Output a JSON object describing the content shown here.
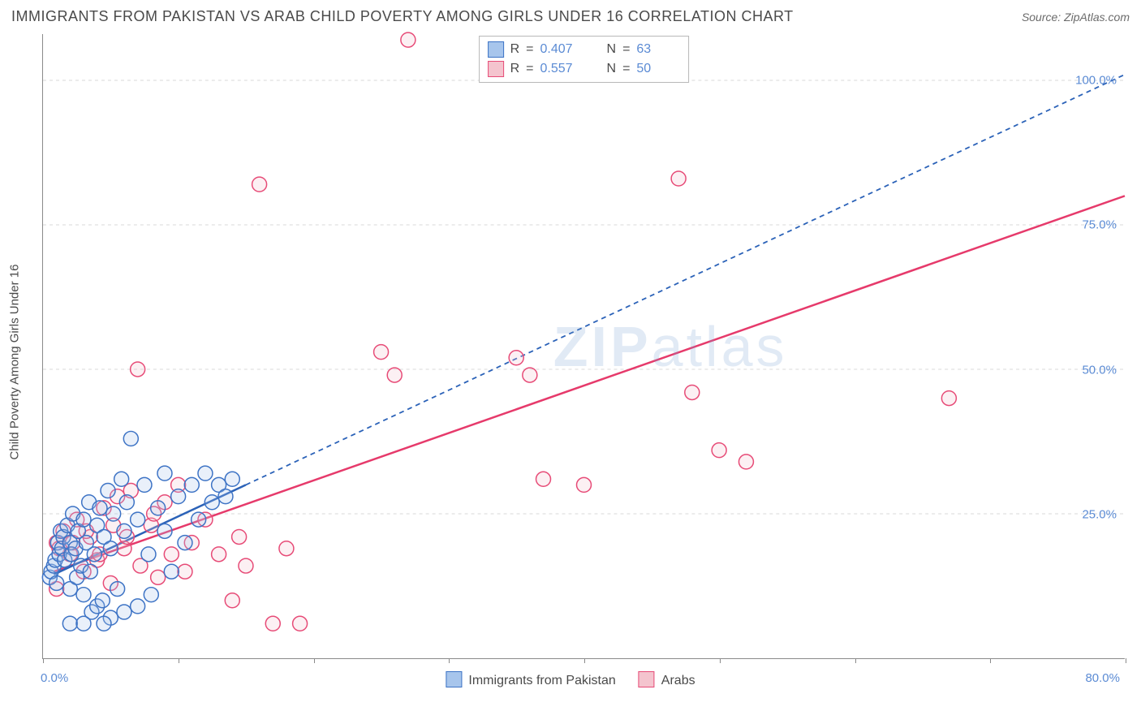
{
  "title": "IMMIGRANTS FROM PAKISTAN VS ARAB CHILD POVERTY AMONG GIRLS UNDER 16 CORRELATION CHART",
  "source_label": "Source: ZipAtlas.com",
  "watermark_a": "ZIP",
  "watermark_b": "atlas",
  "y_axis_label": "Child Poverty Among Girls Under 16",
  "chart": {
    "type": "scatter",
    "background_color": "#ffffff",
    "grid_color": "#d9d9d9",
    "axis_color": "#8a8a8a",
    "xlim": [
      0,
      80
    ],
    "ylim": [
      0,
      108
    ],
    "x_ticks": [
      0,
      10,
      20,
      30,
      40,
      50,
      60,
      70,
      80
    ],
    "x_tick_labels": {
      "0": "0.0%",
      "80": "80.0%"
    },
    "y_gridlines": [
      25,
      50,
      75,
      100
    ],
    "y_tick_labels": {
      "25": "25.0%",
      "50": "50.0%",
      "75": "75.0%",
      "100": "100.0%"
    },
    "marker_radius": 9,
    "marker_stroke_width": 1.5,
    "marker_fill_opacity": 0.25,
    "line_width_solid": 2.5,
    "line_width_dash": 1.8,
    "dash_pattern": "6,5",
    "tick_label_color": "#5b8bd4",
    "axis_text_color": "#4a4a4a",
    "title_fontsize": 18,
    "label_fontsize": 15
  },
  "series": {
    "pakistan": {
      "label": "Immigrants from Pakistan",
      "fill": "#a7c5ec",
      "stroke": "#3d73c5",
      "line_stroke": "#2b62b8",
      "r_value": "0.407",
      "n_value": "63",
      "trend_solid": {
        "x1": 0.8,
        "y1": 14.5,
        "x2": 15,
        "y2": 30
      },
      "trend_dash": {
        "x1": 15,
        "y1": 30,
        "x2": 80,
        "y2": 101
      },
      "points": [
        [
          0.5,
          14
        ],
        [
          0.6,
          15
        ],
        [
          0.8,
          16
        ],
        [
          0.9,
          17
        ],
        [
          1.0,
          13
        ],
        [
          1.1,
          20
        ],
        [
          1.2,
          18
        ],
        [
          1.3,
          22
        ],
        [
          1.4,
          19
        ],
        [
          1.5,
          21
        ],
        [
          1.6,
          17
        ],
        [
          1.8,
          23
        ],
        [
          2.0,
          20
        ],
        [
          2.0,
          12
        ],
        [
          2.1,
          18
        ],
        [
          2.2,
          25
        ],
        [
          2.4,
          19
        ],
        [
          2.5,
          14
        ],
        [
          2.6,
          22
        ],
        [
          2.8,
          16
        ],
        [
          3.0,
          24
        ],
        [
          3.0,
          11
        ],
        [
          3.2,
          20
        ],
        [
          3.4,
          27
        ],
        [
          3.5,
          15
        ],
        [
          3.6,
          8
        ],
        [
          3.8,
          18
        ],
        [
          4.0,
          23
        ],
        [
          4.0,
          9
        ],
        [
          4.2,
          26
        ],
        [
          4.4,
          10
        ],
        [
          4.5,
          21
        ],
        [
          4.8,
          29
        ],
        [
          5.0,
          7
        ],
        [
          5.0,
          19
        ],
        [
          5.2,
          25
        ],
        [
          5.5,
          12
        ],
        [
          5.8,
          31
        ],
        [
          6.0,
          8
        ],
        [
          6.0,
          22
        ],
        [
          6.2,
          27
        ],
        [
          6.5,
          38
        ],
        [
          7.0,
          9
        ],
        [
          7.0,
          24
        ],
        [
          7.5,
          30
        ],
        [
          7.8,
          18
        ],
        [
          8.0,
          11
        ],
        [
          8.5,
          26
        ],
        [
          9.0,
          22
        ],
        [
          9.0,
          32
        ],
        [
          9.5,
          15
        ],
        [
          10.0,
          28
        ],
        [
          10.5,
          20
        ],
        [
          11.0,
          30
        ],
        [
          11.5,
          24
        ],
        [
          12.0,
          32
        ],
        [
          12.5,
          27
        ],
        [
          13.0,
          30
        ],
        [
          13.5,
          28
        ],
        [
          14.0,
          31
        ],
        [
          2.0,
          6
        ],
        [
          3.0,
          6
        ],
        [
          4.5,
          6
        ]
      ]
    },
    "arabs": {
      "label": "Arabs",
      "fill": "#f4c4ce",
      "stroke": "#e74b77",
      "line_stroke": "#e63a6b",
      "r_value": "0.557",
      "n_value": "50",
      "trend_solid": {
        "x1": 0.8,
        "y1": 15,
        "x2": 80,
        "y2": 80
      },
      "points": [
        [
          1.0,
          20
        ],
        [
          1.5,
          22
        ],
        [
          2.0,
          18
        ],
        [
          2.5,
          24
        ],
        [
          3.0,
          15
        ],
        [
          3.5,
          21
        ],
        [
          4.0,
          17
        ],
        [
          4.5,
          26
        ],
        [
          5.0,
          13
        ],
        [
          5.5,
          28
        ],
        [
          6.0,
          19
        ],
        [
          6.5,
          29
        ],
        [
          7.0,
          50
        ],
        [
          7.2,
          16
        ],
        [
          8.0,
          23
        ],
        [
          8.5,
          14
        ],
        [
          9.0,
          27
        ],
        [
          9.5,
          18
        ],
        [
          10.0,
          30
        ],
        [
          10.5,
          15
        ],
        [
          11.0,
          20
        ],
        [
          12.0,
          24
        ],
        [
          13.0,
          18
        ],
        [
          14.0,
          10
        ],
        [
          14.5,
          21
        ],
        [
          15.0,
          16
        ],
        [
          16.0,
          82
        ],
        [
          17.0,
          6
        ],
        [
          18.0,
          19
        ],
        [
          19.0,
          6
        ],
        [
          25.0,
          53
        ],
        [
          26.0,
          49
        ],
        [
          27.0,
          107
        ],
        [
          35.0,
          52
        ],
        [
          36.0,
          49
        ],
        [
          37.0,
          31
        ],
        [
          40.0,
          30
        ],
        [
          47.0,
          83
        ],
        [
          48.0,
          46
        ],
        [
          50.0,
          36
        ],
        [
          52.0,
          34
        ],
        [
          67.0,
          45
        ],
        [
          1.2,
          19
        ],
        [
          2.2,
          20
        ],
        [
          3.2,
          22
        ],
        [
          4.2,
          18
        ],
        [
          5.2,
          23
        ],
        [
          6.2,
          21
        ],
        [
          8.2,
          25
        ],
        [
          1.0,
          12
        ]
      ]
    }
  },
  "legend": {
    "r_label": "R",
    "n_label": "N",
    "eq": "="
  }
}
